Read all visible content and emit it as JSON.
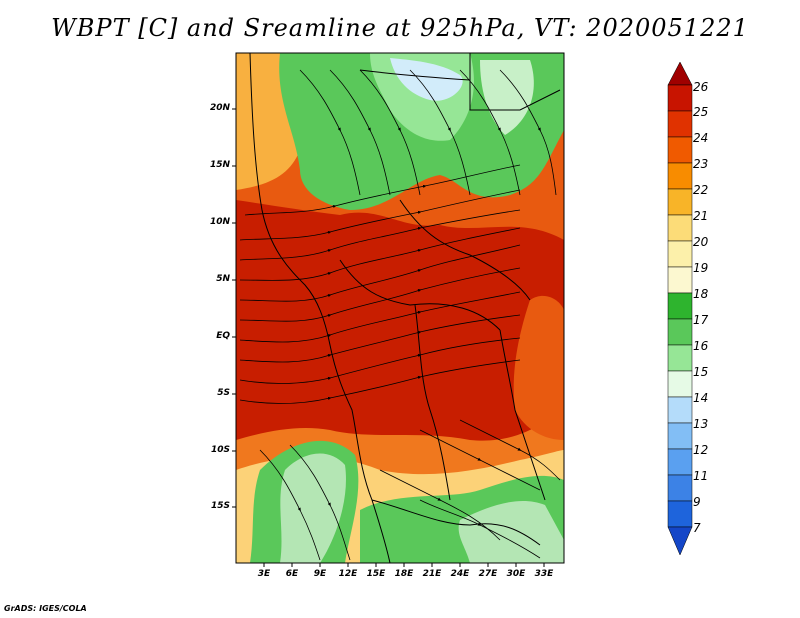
{
  "title": "WBPT [C] and Sreamline at 925hPa, VT: 2020051221",
  "footer": "GrADS: IGES/COLA",
  "lat_labels": [
    "20N",
    "15N",
    "10N",
    "5N",
    "EQ",
    "5S",
    "10S",
    "15S"
  ],
  "lon_labels": [
    "3E",
    "6E",
    "9E",
    "12E",
    "15E",
    "18E",
    "21E",
    "24E",
    "27E",
    "30E",
    "33E"
  ],
  "colorbar": {
    "levels": [
      "26",
      "25",
      "24",
      "23",
      "22",
      "21",
      "20",
      "19",
      "18",
      "17",
      "16",
      "15",
      "14",
      "13",
      "12",
      "11",
      "9",
      "7"
    ],
    "colors": [
      "#a00000",
      "#c81400",
      "#e03200",
      "#f05a00",
      "#f88c00",
      "#f8b428",
      "#fcdc78",
      "#fcf0aa",
      "#2eb42e",
      "#5ac85a",
      "#96e696",
      "#e6fae6",
      "#b4dcfa",
      "#82bef5",
      "#5aa0f0",
      "#3c82e6",
      "#1e64dc",
      "#1446c8"
    ]
  }
}
